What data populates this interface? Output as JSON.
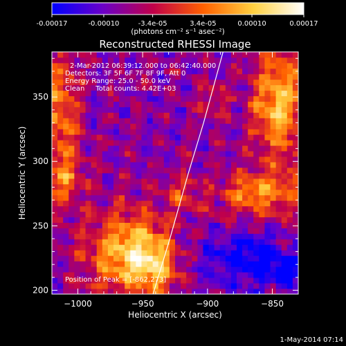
{
  "chart_data": {
    "type": "heatmap",
    "title": "Reconstructed RHESSI Image",
    "xlabel": "Heliocentric X (arcsec)",
    "ylabel": "Heliocentric Y (arcsec)",
    "xlim": [
      -1020,
      -830
    ],
    "ylim": [
      197,
      385
    ],
    "x_ticks": [
      -1000,
      -950,
      -900,
      -850
    ],
    "y_ticks": [
      200,
      250,
      300,
      350
    ],
    "colorbar": {
      "range": [
        -0.00017,
        0.00017
      ],
      "ticks": [
        -0.00017,
        -0.0001,
        -3.4e-05,
        3.4e-05,
        0.0001,
        0.00017
      ],
      "tick_labels": [
        "-0.00017",
        "-0.00010",
        "-3.4e-05",
        "3.4e-05",
        "0.00010",
        "0.00017"
      ],
      "unit_label": "(photons cm⁻² s⁻¹ asec⁻²)",
      "colors": [
        "#0000ff",
        "#6a00c8",
        "#c0004a",
        "#ff6000",
        "#ffd040",
        "#ffffff"
      ]
    },
    "annotations": {
      "time_range": "2-Mar-2012 06:39:12.000 to 06:42:40.000",
      "detectors": "Detectors: 3F 5F 6F 7F 8F 9F, Att 0",
      "energy_range": "Energy Range: 25.0 - 50.0 keV",
      "algorithm": "Clean     Total counts: 4.42E+03",
      "peak": "Position of Peak = [-862,273]"
    },
    "limb_curve": [
      [
        -942,
        197
      ],
      [
        -929,
        240
      ],
      [
        -915,
        290
      ],
      [
        -903,
        330
      ],
      [
        -888,
        385
      ]
    ],
    "emission_blobs": [
      {
        "x": -960,
        "y": 230,
        "sx": 22,
        "sy": 22,
        "amp": 2.2
      },
      {
        "x": -940,
        "y": 218,
        "sx": 12,
        "sy": 14,
        "amp": 1.2
      },
      {
        "x": -1013,
        "y": 335,
        "sx": 10,
        "sy": 35,
        "amp": 1.5
      },
      {
        "x": -1010,
        "y": 285,
        "sx": 10,
        "sy": 12,
        "amp": 1.0
      },
      {
        "x": -845,
        "y": 345,
        "sx": 14,
        "sy": 30,
        "amp": 2.1
      },
      {
        "x": -860,
        "y": 275,
        "sx": 22,
        "sy": 12,
        "amp": 1.6
      },
      {
        "x": -920,
        "y": 275,
        "sx": 9,
        "sy": 9,
        "amp": 0.9
      },
      {
        "x": -895,
        "y": 350,
        "sx": 9,
        "sy": 9,
        "amp": 0.7
      },
      {
        "x": -840,
        "y": 215,
        "sx": 6,
        "sy": 6,
        "amp": -1.8
      },
      {
        "x": -870,
        "y": 225,
        "sx": 25,
        "sy": 15,
        "amp": -1.2
      }
    ]
  },
  "footer": {
    "date": "1-May-2014 07:14"
  }
}
